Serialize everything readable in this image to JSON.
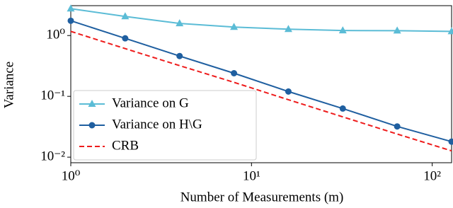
{
  "chart_data": {
    "type": "line",
    "log_x": true,
    "log_y": true,
    "x_label": "Number of Measurements (m)",
    "y_label": "Variance",
    "x": [
      1,
      2,
      4,
      8,
      16,
      32,
      64,
      128
    ],
    "series": [
      {
        "name": "Variance on G",
        "color": "#5bbcd6",
        "marker": "triangle",
        "linestyle": "solid",
        "values": [
          2.77,
          2.06,
          1.58,
          1.38,
          1.27,
          1.21,
          1.2,
          1.17
        ]
      },
      {
        "name": "Variance on H\\G",
        "color": "#1f5fa0",
        "marker": "circle",
        "linestyle": "solid",
        "values": [
          1.75,
          0.9,
          0.46,
          0.24,
          0.12,
          0.063,
          0.032,
          0.018
        ]
      },
      {
        "name": "CRB",
        "color": "#ee1c1c",
        "linestyle": "dashed",
        "values": [
          1.17,
          0.61,
          0.32,
          0.17,
          0.088,
          0.046,
          0.024,
          0.0127
        ]
      }
    ],
    "xlim": [
      1,
      128
    ],
    "ylim": [
      0.0081,
      3.1
    ],
    "xticks": [
      {
        "value": 1,
        "label": "10⁰"
      },
      {
        "value": 10,
        "label": "10¹"
      },
      {
        "value": 100,
        "label": "10²"
      }
    ],
    "yticks": [
      {
        "value": 0.01,
        "label": "10⁻²"
      },
      {
        "value": 0.1,
        "label": "10⁻¹"
      },
      {
        "value": 1,
        "label": "10⁰"
      }
    ],
    "legend": "lower left"
  }
}
